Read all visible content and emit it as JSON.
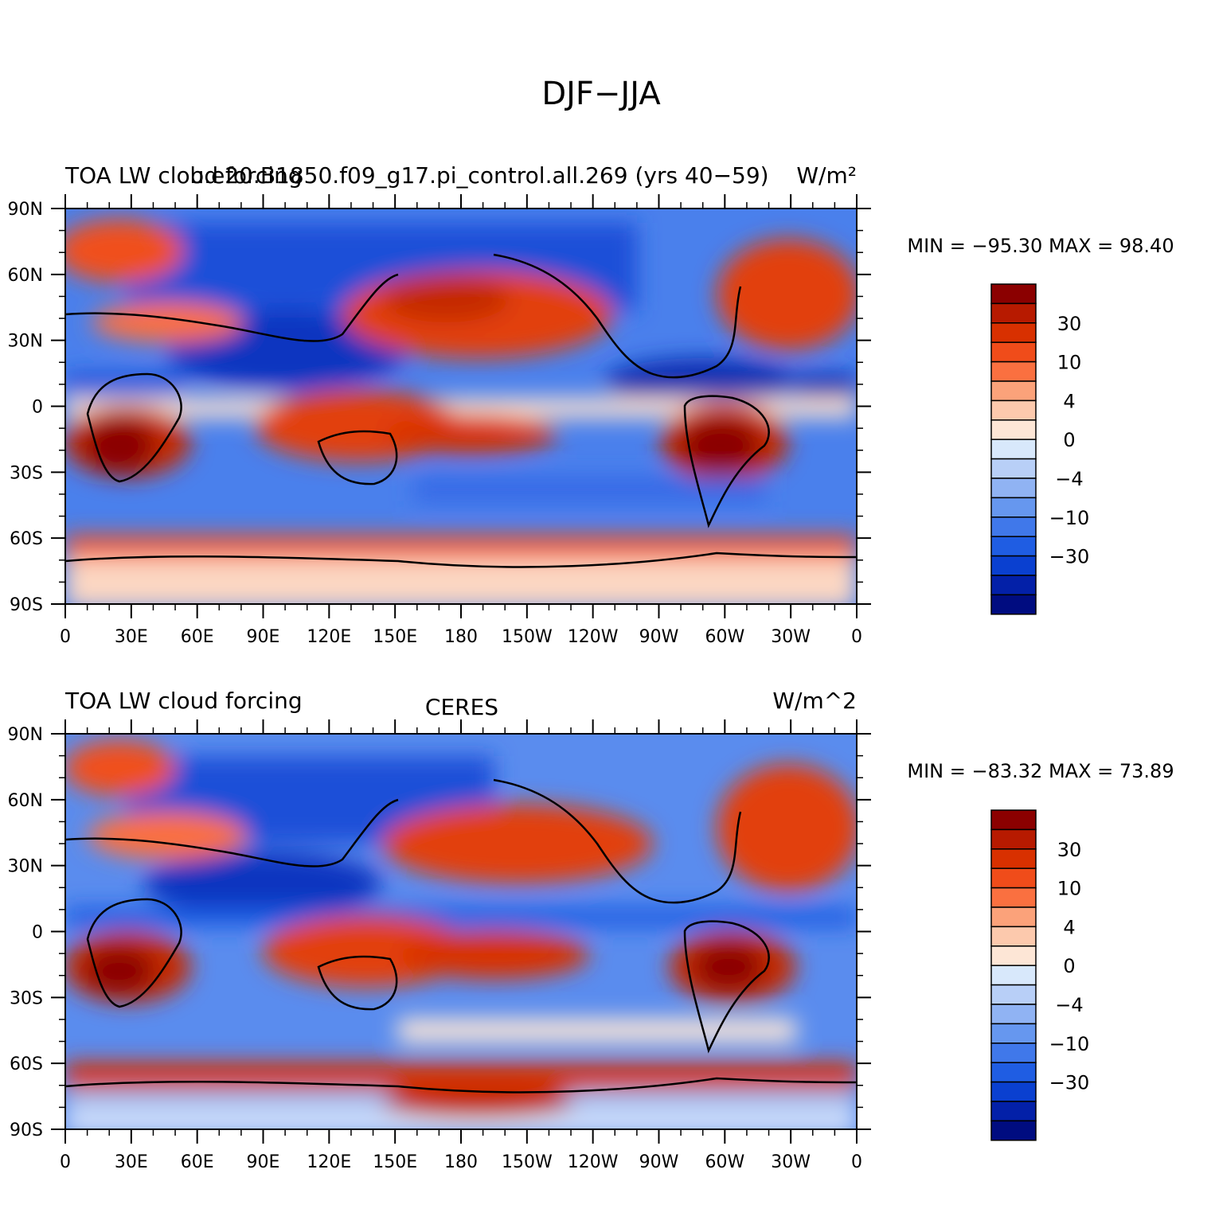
{
  "page_title": "DJF−JJA",
  "colorbar": {
    "labels": [
      "30",
      "10",
      "4",
      "0",
      "−4",
      "−10",
      "−30"
    ],
    "colors": [
      "#8b0000",
      "#b71a00",
      "#d83000",
      "#f04c1a",
      "#fa7040",
      "#fba27a",
      "#fcc9ad",
      "#fde6d6",
      "#d8e8fb",
      "#b8cff7",
      "#90b3f3",
      "#6697ef",
      "#4078ea",
      "#1f5de3",
      "#0a40d0",
      "#0320a8",
      "#000c80"
    ]
  },
  "panels": [
    {
      "left_title": "TOA LW cloud forcing",
      "center_title": "b.e20.B1850.f09_g17.pi_control.all.269 (yrs 40−59)",
      "units": "W/m²",
      "stats": "MIN = −95.30  MAX =   98.40",
      "lat_labels": [
        "90N",
        "60N",
        "30N",
        "0",
        "30S",
        "60S",
        "90S"
      ],
      "lon_labels": [
        "0",
        "30E",
        "60E",
        "90E",
        "120E",
        "150E",
        "180",
        "150W",
        "120W",
        "90W",
        "60W",
        "30W",
        "0"
      ]
    },
    {
      "left_title": "TOA LW cloud forcing",
      "center_title": "CERES",
      "units": "W/m^2",
      "stats": "MIN = −83.32  MAX =   73.89",
      "lat_labels": [
        "90N",
        "60N",
        "30N",
        "0",
        "30S",
        "60S",
        "90S"
      ],
      "lon_labels": [
        "0",
        "30E",
        "60E",
        "90E",
        "120E",
        "150E",
        "180",
        "150W",
        "120W",
        "90W",
        "60W",
        "30W",
        "0"
      ]
    }
  ]
}
